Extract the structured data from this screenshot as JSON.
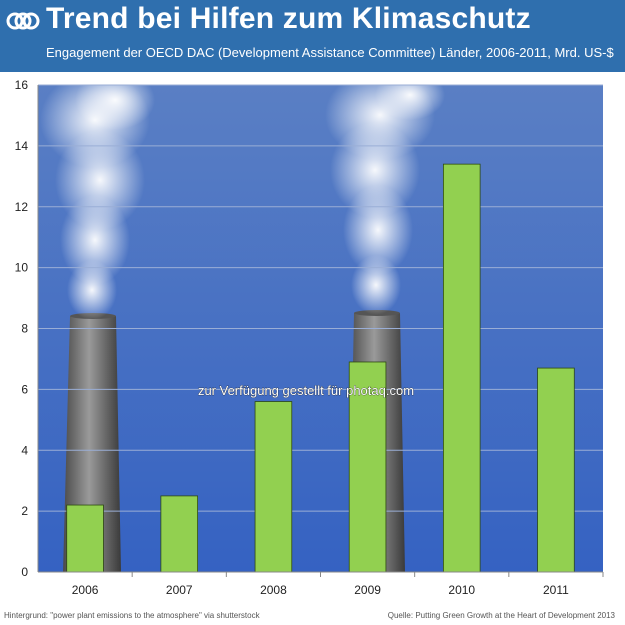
{
  "header": {
    "title": "Trend bei Hilfen zum Klimaschutz",
    "subtitle": "Engagement der OECD DAC (Development Assistance Committee) Länder, 2006-2011, Mrd. US-$",
    "logo_icon": "oecd-logo-icon"
  },
  "watermark": "zur Verfügung gestellt für photaq.com",
  "footer": {
    "left": "Hintergrund: \"power plant emissions to the atmosphere\" via shutterstock",
    "right": "Quelle: Putting Green Growth at the Heart of Development 2013"
  },
  "colors": {
    "header": "#2f6fae",
    "bar": "#92d050",
    "bar_outline": "#2e4a12",
    "sky_top": "#4f76c0",
    "sky_bottom": "#3a66c4"
  },
  "chart_data": {
    "type": "bar",
    "categories": [
      "2006",
      "2007",
      "2008",
      "2009",
      "2010",
      "2011"
    ],
    "values": [
      2.2,
      2.5,
      5.6,
      6.9,
      13.4,
      6.7
    ],
    "title": "Trend bei Hilfen zum Klimaschutz",
    "xlabel": "",
    "ylabel": "",
    "ylim": [
      0,
      16
    ],
    "yticks": [
      0,
      2,
      4,
      6,
      8,
      10,
      12,
      14,
      16
    ],
    "grid": true,
    "legend": "none"
  }
}
